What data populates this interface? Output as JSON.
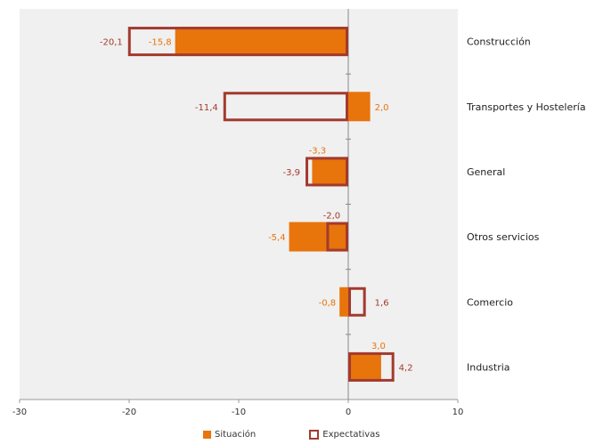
{
  "chart_data": {
    "type": "bar",
    "orientation": "horizontal",
    "categories": [
      "Construcción",
      "Transportes y Hostelería",
      "General",
      "Otros servicios",
      "Comercio",
      "Industria"
    ],
    "series": [
      {
        "name": "Situación",
        "values": [
          -15.8,
          2.0,
          -3.3,
          -5.4,
          -0.8,
          3.0
        ],
        "labels": [
          "-15,8",
          "2,0",
          "-3,3",
          "-5,4",
          "-0,8",
          "3,0"
        ],
        "color": "#E8740C",
        "style": "filled"
      },
      {
        "name": "Expectativas",
        "values": [
          -20.1,
          -11.4,
          -3.9,
          -2.0,
          1.6,
          4.2
        ],
        "labels": [
          "-20,1",
          "-11,4",
          "-3,9",
          "-2,0",
          "1,6",
          "4,2"
        ],
        "color": "#A33A2E",
        "style": "outline"
      }
    ],
    "xlim": [
      -30,
      10
    ],
    "xticks": [
      -30,
      -20,
      -10,
      0,
      10
    ],
    "xtick_labels": [
      "-30",
      "-20",
      "-10",
      "0",
      "10"
    ],
    "grid": false,
    "legend_position": "bottom",
    "plot_background": "#F0F0F0",
    "situacion_label_color": "#E8740C",
    "expectativas_label_color": "#A33A2E"
  }
}
